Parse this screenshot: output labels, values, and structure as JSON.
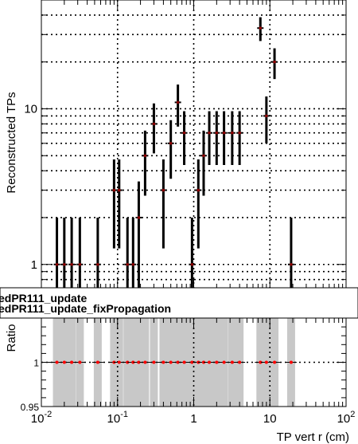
{
  "chart_data": [
    {
      "type": "scatter",
      "title": "",
      "xlabel": "",
      "ylabel": "Reconstructed TPs",
      "x_scale": "log",
      "y_scale": "log",
      "xlim": [
        0.01,
        100
      ],
      "ylim": [
        0.7,
        50
      ],
      "y_tick_labels": [
        "1",
        "10"
      ],
      "grid": true,
      "series": [
        {
          "color": "#8b0000",
          "marker_color": "#000000",
          "x": [
            0.016,
            0.02,
            0.025,
            0.032,
            0.055,
            0.09,
            0.105,
            0.135,
            0.16,
            0.19,
            0.23,
            0.3,
            0.4,
            0.5,
            0.62,
            0.75,
            0.95,
            1.15,
            1.35,
            1.6,
            2.0,
            2.5,
            3.2,
            4.0,
            7.5,
            9.0,
            11.5,
            19.0
          ],
          "y": [
            1,
            1,
            1,
            1,
            1,
            3,
            3,
            1,
            1,
            2,
            5,
            8,
            3,
            6,
            11,
            7,
            1,
            3,
            5,
            7,
            7,
            7,
            7,
            7,
            33,
            9,
            20,
            1
          ],
          "yerr": "sqrt"
        }
      ]
    },
    {
      "type": "scatter",
      "title": "",
      "xlabel": "TP vert r (cm)",
      "ylabel": "Ratio",
      "x_scale": "log",
      "xlim": [
        0.01,
        100
      ],
      "ylim": [
        0.95,
        1.05
      ],
      "x_tick_labels": [
        "10^-2",
        "10^-1",
        "1",
        "10",
        "10^2"
      ],
      "y_tick_labels": [
        "0.95",
        "1"
      ],
      "grid": true,
      "legend": [
        "edPR111_update",
        "edPR111_update_fixPropagation"
      ],
      "series": [
        {
          "color": "#ff0000",
          "band_color": "#c8c8c8",
          "x": [
            0.016,
            0.02,
            0.025,
            0.032,
            0.055,
            0.09,
            0.105,
            0.135,
            0.16,
            0.19,
            0.23,
            0.3,
            0.4,
            0.5,
            0.62,
            0.75,
            0.95,
            1.15,
            1.35,
            1.6,
            2.0,
            2.5,
            3.2,
            4.0,
            7.5,
            9.0,
            11.5,
            19.0
          ],
          "y": [
            1,
            1,
            1,
            1,
            1,
            1,
            1,
            1,
            1,
            1,
            1,
            1,
            1,
            1,
            1,
            1,
            1,
            1,
            1,
            1,
            1,
            1,
            1,
            1,
            1,
            1,
            1,
            1
          ]
        }
      ]
    }
  ]
}
